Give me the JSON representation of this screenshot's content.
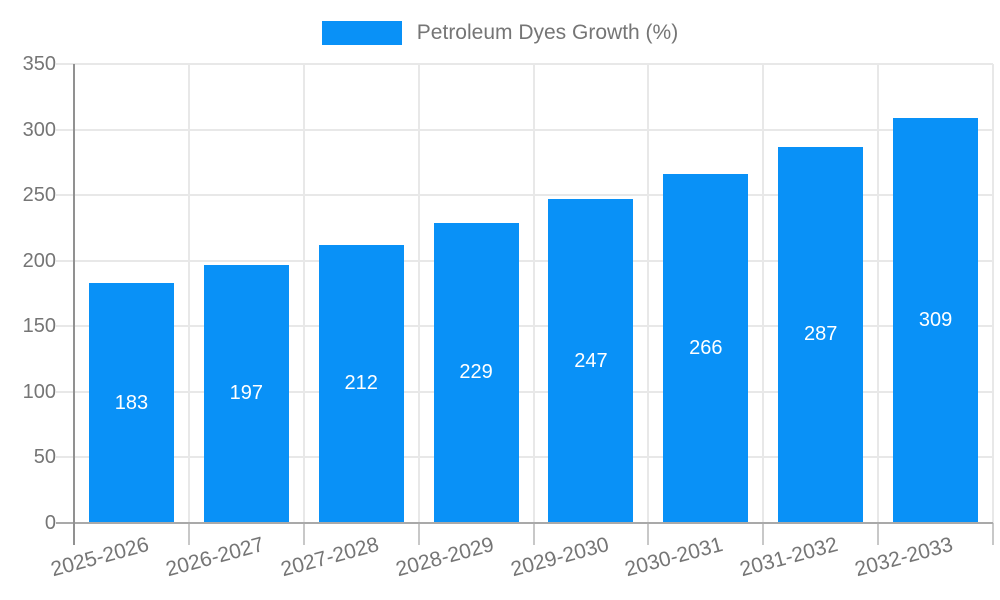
{
  "legend": {
    "label": "Petroleum Dyes Growth (%)"
  },
  "colors": {
    "bar": "#0991f7",
    "grid": "#e8e8e8",
    "x_axis_line": "#a9a9a9",
    "y_axis_line": "#919191",
    "tick": "#c8c8c8",
    "axis_text": "#757575",
    "value_text": "#ffffff"
  },
  "chart_data": {
    "type": "bar",
    "title": "Petroleum Dyes Growth (%)",
    "categories": [
      "2025-2026",
      "2026-2027",
      "2027-2028",
      "2028-2029",
      "2029-2030",
      "2030-2031",
      "2031-2032",
      "2032-2033"
    ],
    "values": [
      183,
      197,
      212,
      229,
      247,
      266,
      287,
      309
    ],
    "xlabel": "",
    "ylabel": "",
    "ylim": [
      0,
      350
    ],
    "yticks": [
      0,
      50,
      100,
      150,
      200,
      250,
      300,
      350
    ],
    "grid": true,
    "legend_position": "top-center",
    "bar_labels_inside": true,
    "x_label_rotation_deg": -15
  }
}
